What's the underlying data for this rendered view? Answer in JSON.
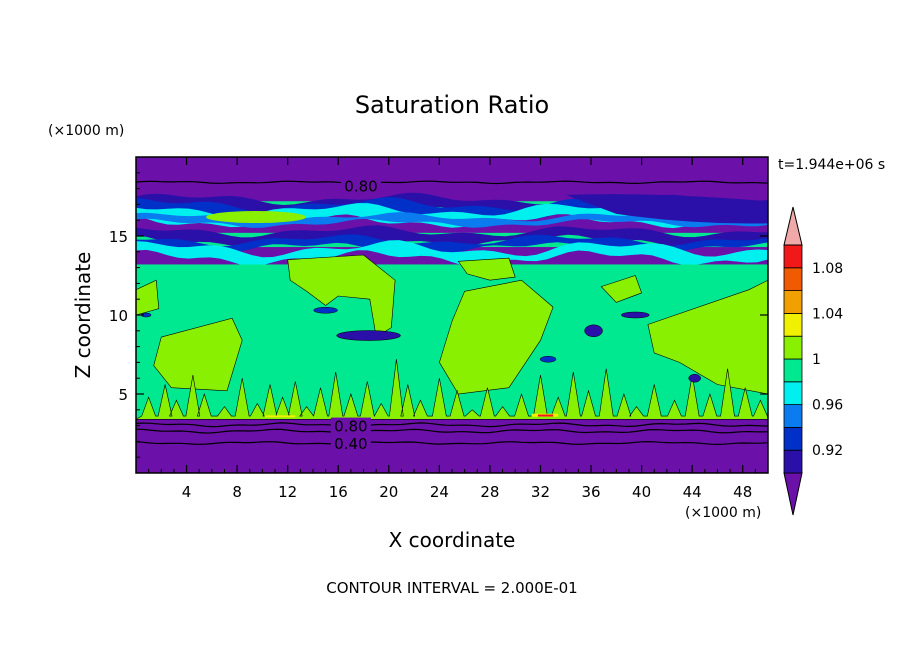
{
  "chart_data": {
    "type": "heatmap",
    "title": "Saturation Ratio",
    "xlabel": "X coordinate",
    "ylabel": "Z coordinate",
    "x_unit": "(×1000 m)",
    "y_unit": "(×1000 m)",
    "time_label": "t=1.944e+06 s",
    "footer": "CONTOUR INTERVAL = 2.000E-01",
    "xlim": [
      0,
      50
    ],
    "ylim": [
      0,
      20
    ],
    "x_ticks": [
      4,
      8,
      12,
      16,
      20,
      24,
      28,
      32,
      36,
      40,
      44,
      48
    ],
    "y_ticks": [
      5,
      10,
      15
    ],
    "grid": false,
    "legend": "right",
    "colorbar": {
      "levels": [
        0.9,
        0.92,
        0.94,
        0.96,
        0.98,
        1.0,
        1.02,
        1.04,
        1.06,
        1.08,
        1.1
      ],
      "tick_labels": [
        "1.08",
        "1.04",
        "1",
        "0.96",
        "0.92"
      ],
      "colors": [
        "#6b10a8",
        "#2a10a8",
        "#0030c8",
        "#0a7cf0",
        "#00f0f0",
        "#00e890",
        "#88f000",
        "#f0f000",
        "#f0a000",
        "#f05a00",
        "#f01818",
        "#f0a8a8"
      ]
    },
    "contour_labels": [
      {
        "text": "0.80",
        "x": 17.8,
        "y": 18.2
      },
      {
        "text": "0.80",
        "x": 17.0,
        "y": 3.0
      },
      {
        "text": "0.40",
        "x": 17.0,
        "y": 1.9
      }
    ]
  }
}
